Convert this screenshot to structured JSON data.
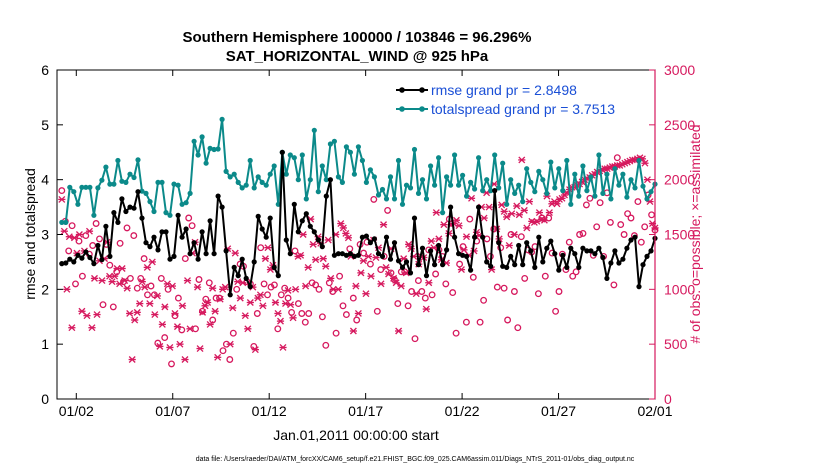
{
  "chart_data": {
    "type": "line",
    "title": "Southern Hemisphere 100000 / 103846 = 96.296%",
    "subtitle": "SAT_HORIZONTAL_WIND @ 925 hPa",
    "xlabel": "Jan.01,2011 00:00:00 start",
    "ylabel": "rmse and totalspread",
    "y2label": "# of obs: o=possible; ×=assimilated",
    "footnote": "data file: /Users/raeder/DAI/ATM_forcXX/CAM6_setup/f.e21.FHIST_BGC.f09_025.CAM6assim.011/Diags_NTrS_2011-01/obs_diag_output.nc",
    "xlim": [
      0,
      31
    ],
    "ylim": [
      0,
      6
    ],
    "y2lim": [
      0,
      3000
    ],
    "xticks": [
      1,
      6,
      11,
      16,
      21,
      26,
      31
    ],
    "xtick_labels": [
      "01/02",
      "01/07",
      "01/12",
      "01/17",
      "01/22",
      "01/27",
      "02/01"
    ],
    "yticks": [
      "0",
      "1",
      "2",
      "3",
      "4",
      "5",
      "6"
    ],
    "y2ticks": [
      "0",
      "500",
      "1000",
      "1500",
      "2000",
      "2500",
      "3000"
    ],
    "grid": false,
    "legend_position": "top-right",
    "colors": {
      "rmse": "#000000",
      "spread": "#0b8a8a",
      "obs": "#d6195e",
      "legend_text": "#1a4fd6"
    },
    "series": [
      {
        "name": "rmse grand pr = 2.8498",
        "axis": "left",
        "values": [
          2.47,
          2.48,
          2.55,
          2.5,
          2.62,
          2.57,
          2.68,
          2.58,
          2.47,
          2.8,
          2.54,
          3.15,
          2.6,
          3.4,
          3.22,
          3.65,
          3.42,
          3.5,
          3.48,
          3.78,
          3.3,
          2.85,
          2.78,
          2.95,
          2.72,
          3.05,
          3.05,
          2.55,
          2.6,
          3.35,
          2.95,
          3.1,
          2.65,
          2.85,
          2.55,
          3.05,
          2.65,
          3.25,
          2.65,
          3.7,
          3.5,
          2.7,
          1.9,
          2.4,
          2.25,
          2.55,
          2.2,
          2.05,
          2.5,
          3.33,
          3.1,
          2.95,
          3.3,
          2.4,
          2.25,
          4.5,
          2.9,
          2.65,
          3.55,
          3.05,
          3.25,
          3.38,
          3.15,
          3.05,
          2.9,
          2.78,
          3.7,
          4.0,
          2.62,
          2.65,
          2.65,
          2.62,
          2.65,
          2.6,
          2.62,
          2.95,
          2.97,
          2.85,
          2.92,
          2.65,
          2.6,
          2.95,
          2.55,
          2.85,
          2.52,
          2.4,
          2.5,
          2.3,
          3.3,
          2.45,
          2.75,
          2.25,
          2.7,
          2.45,
          2.8,
          2.45,
          2.72,
          3.5,
          2.95,
          2.65,
          2.62,
          2.6,
          2.35,
          2.95,
          3.5,
          2.95,
          2.5,
          2.42,
          3.8,
          2.85,
          2.42,
          2.4,
          2.6,
          2.45,
          2.8,
          2.45,
          2.85,
          2.7,
          2.4,
          2.95,
          2.5,
          2.75,
          2.88,
          2.65,
          2.35,
          2.62,
          2.4,
          2.75,
          2.65,
          2.4,
          2.75,
          2.7,
          2.7,
          2.65,
          2.75,
          2.58,
          2.2,
          2.48,
          2.7,
          2.48,
          2.55,
          2.75,
          2.9,
          2.95,
          2.05,
          2.45,
          2.6,
          2.7,
          2.93
        ]
      },
      {
        "name": "totalspread grand pr = 3.7513",
        "axis": "left",
        "values": [
          3.22,
          3.22,
          3.86,
          3.78,
          3.55,
          3.86,
          3.86,
          3.86,
          3.35,
          3.85,
          3.99,
          4.23,
          3.92,
          3.92,
          4.35,
          3.97,
          3.95,
          4.1,
          4.04,
          4.36,
          3.79,
          3.75,
          3.6,
          3.42,
          3.95,
          3.95,
          3.4,
          3.35,
          3.92,
          3.9,
          3.55,
          3.58,
          3.75,
          4.7,
          4.45,
          4.78,
          4.3,
          4.57,
          4.55,
          4.56,
          5.1,
          4.15,
          4.05,
          4.1,
          3.95,
          3.85,
          3.9,
          4.35,
          3.85,
          4.05,
          3.95,
          3.9,
          4.1,
          4.25,
          3.55,
          4.5,
          4.1,
          4.45,
          4.4,
          4.0,
          4.45,
          3.65,
          4.0,
          4.9,
          3.78,
          4.25,
          4.0,
          4.65,
          4.7,
          4.05,
          3.95,
          4.6,
          4.5,
          4.1,
          4.6,
          4.35,
          3.95,
          4.18,
          4.05,
          3.72,
          3.82,
          3.65,
          4.05,
          3.65,
          4.35,
          3.55,
          3.9,
          3.85,
          4.55,
          3.75,
          4.0,
          3.65,
          4.25,
          3.9,
          4.4,
          3.4,
          4.05,
          3.9,
          4.45,
          3.9,
          4.08,
          3.7,
          3.95,
          3.83,
          4.4,
          3.8,
          4.0,
          3.8,
          4.45,
          3.85,
          4.3,
          3.55,
          4.0,
          3.75,
          3.9,
          3.6,
          4.2,
          3.95,
          3.78,
          4.15,
          4.0,
          3.75,
          4.32,
          3.85,
          4.2,
          3.8,
          4.35,
          3.55,
          4.1,
          3.7,
          4.25,
          3.8,
          4.05,
          3.7,
          4.45,
          3.75,
          4.1,
          3.65,
          4.2,
          3.9,
          4.1,
          3.68,
          4.0,
          3.85,
          4.35,
          3.88,
          3.65,
          3.78,
          3.92
        ]
      },
      {
        "name": "possible",
        "axis": "right",
        "values": [
          1900,
          1620,
          1350,
          1580,
          1050,
          1440,
          1120,
          1490,
          1320,
          1400,
          1600,
          1460,
          860,
          1410,
          1220,
          840,
          1160,
          1420,
          1070,
          1560,
          1100,
          1490,
          1010,
          1100,
          1280,
          950,
          1030,
          950,
          510,
          1100,
          560,
          1000,
          320,
          760,
          920,
          630,
          1280,
          1650,
          1580,
          640,
          1090,
          800,
          910,
          1060,
          720,
          920,
          920,
          440,
          500,
          360,
          600,
          1000,
          1230,
          1210,
          1070,
          1050,
          480,
          780,
          1380,
          1050,
          950,
          1020,
          1040,
          640,
          950,
          1010,
          920,
          790,
          1350,
          870,
          780,
          700,
          780,
          1060,
          1040,
          1000,
          750,
          490,
          1060,
          980,
          600,
          1120,
          850,
          770,
          1370,
          920,
          720,
          1410,
          1330,
          1430,
          1230,
          1820,
          800,
          1180,
          1300,
          1720,
          1150,
          1090,
          870,
          1160,
          1160,
          850,
          980,
          550,
          1080,
          980,
          920,
          1360,
          950,
          1140,
          1360,
          1300,
          1050,
          1640,
          970,
          600,
          1230,
          1390,
          700,
          1640,
          1110,
          1440,
          700,
          900,
          1460,
          1300,
          1550,
          1020,
          1380,
          1010,
          720,
          1500,
          980,
          650,
          1480,
          1100,
          1360,
          1340,
          1390,
          960,
          1650,
          1120,
          1650,
          1330,
          800,
          980,
          1320,
          1180,
          1430,
          1120,
          1160,
          1500,
          1510,
          1770,
          1830,
          1310,
          1570,
          1790,
          1300,
          1880,
          1610,
          1040,
          2200,
          1590,
          1500,
          1690,
          1650,
          1490,
          1800,
          1430,
          1570,
          1860,
          1680,
          1540
        ]
      },
      {
        "name": "assimilated",
        "axis": "right",
        "values": [
          1820,
          1530,
          1000,
          1480,
          650,
          1470,
          1330,
          1500,
          800,
          1350,
          760,
          1530,
          650,
          1100,
          770,
          1260,
          1080,
          1280,
          1430,
          1120,
          1070,
          1120,
          1190,
          1050,
          1190,
          1080,
          1010,
          780,
          360,
          720,
          790,
          870,
          1070,
          1020,
          1200,
          870,
          1250,
          770,
          940,
          480,
          680,
          840,
          1050,
          470,
          1030,
          780,
          660,
          500,
          850,
          360,
          1080,
          640,
          1330,
          1430,
          1020,
          460,
          790,
          850,
          880,
          680,
          1010,
          800,
          380,
          910,
          1000,
          1020,
          1370,
          500,
          830,
          1330,
          1070,
          920,
          1060,
          760,
          640,
          880,
          1020,
          450,
          920,
          950,
          850,
          1280,
          1380,
          1180,
          1220,
          880,
          780,
          710,
          470,
          870,
          990,
          860,
          740,
          1000,
          1300,
          1310,
          1500,
          1030,
          1200,
          1640,
          1410,
          1270,
          1480,
          1420,
          1280,
          1210,
          1450,
          1100,
          1000,
          1500,
          1000,
          1600,
          1560,
          1510,
          1470,
          1300,
          620,
          1030,
          780,
          1150,
          1260,
          960,
          1300,
          1120,
          1450,
          1290,
          1380,
          1050,
          1590,
          1200,
          1140,
          1370,
          1100,
          1060,
          620,
          1030,
          1280,
          1150,
          1410,
          1370,
          1300,
          960,
          1230,
          1300,
          1290,
          820,
          1060,
          1440,
          1380,
          1700,
          1460,
          1270,
          1590,
          1240,
          1510,
          1590,
          1600,
          1630,
          1580,
          1180,
          1360,
          1480,
          1310,
          1830,
          1350,
          1520,
          1490,
          1750,
          1650,
          1880,
          1750,
          1180,
          1960,
          1550,
          1460,
          1770,
          1710,
          1660,
          1400,
          1690,
          1500,
          1760,
          1680,
          2180,
          1720,
          1560,
          1800,
          1620,
          1610,
          1620,
          1700,
          1640,
          1630,
          1850,
          1700,
          1780,
          1800,
          1780,
          1820,
          1830,
          1860,
          1880,
          1910,
          1930,
          1930,
          1950,
          1960,
          1980,
          2000,
          2010,
          2020,
          2040,
          2050,
          2070,
          2080,
          2090,
          2100,
          2100,
          2110,
          2120,
          2120,
          2130,
          2130,
          2140,
          2150,
          2160,
          2170,
          2180,
          2180,
          2190,
          2200,
          2190,
          2150,
          2000,
          1800,
          1600,
          1560
        ]
      }
    ]
  }
}
